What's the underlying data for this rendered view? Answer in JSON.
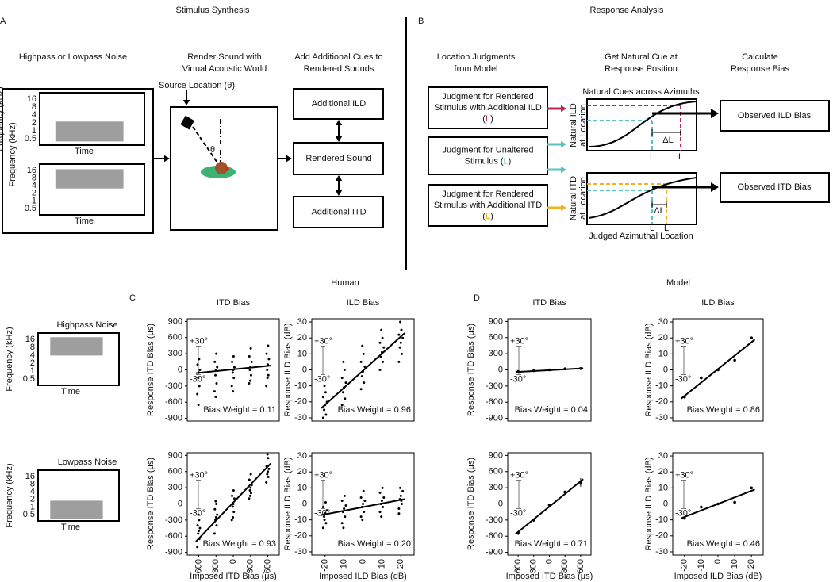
{
  "panel_a": {
    "letter": "A",
    "title": "Stimulus Synthesis",
    "step1": "Highpass or Lowpass Noise",
    "step2": [
      "Render Sound with",
      "Virtual Acoustic World"
    ],
    "step3": [
      "Add Additional Cues to",
      "Rendered Sounds"
    ],
    "freq_label": "Frequency (kHz)",
    "freq_ticks": [
      "16",
      "8",
      "4",
      "2",
      "1",
      "0.5"
    ],
    "time_label": "Time",
    "source_label": "Source Location (θ)",
    "angle_label": "θ",
    "boxes": [
      "Additional ILD",
      "Rendered Sound",
      "Additional ITD"
    ]
  },
  "panel_b": {
    "letter": "B",
    "title": "Response Analysis",
    "step1": [
      "Location Judgments",
      "from Model"
    ],
    "step2": [
      "Get Natural Cue at",
      "Response Position"
    ],
    "step3": [
      "Calculate",
      "Response Bias"
    ],
    "judgments": [
      {
        "lines": [
          "Judgment for Rendered",
          "Stimulus with Additional ILD"
        ],
        "last": "(",
        "marker": "L",
        "close": ")",
        "color": "#b5285a"
      },
      {
        "lines": [
          "Judgment for Unaltered"
        ],
        "last": "Stimulus (",
        "marker": "L",
        "close": ")",
        "color": "#5bc2c0"
      },
      {
        "lines": [
          "Judgment for Rendered",
          "Stimulus with Additional ITD"
        ],
        "last": "(",
        "marker": "L",
        "close": ")",
        "color": "#f0b323"
      }
    ],
    "graph_title": "Natural Cues across Azimuths",
    "ild_axis": [
      "Natural ILD",
      "at Location"
    ],
    "itd_axis": [
      "Natural ITD",
      "at Location"
    ],
    "x_axis": "Judged Azimuthal Location",
    "delta": "ΔL",
    "marker": "L",
    "outputs": [
      "Observed ILD Bias",
      "Observed ITD Bias"
    ]
  },
  "panel_c": {
    "letter": "C",
    "title": "Human",
    "stimuli": [
      "Highpass Noise",
      "Lowpass Noise"
    ]
  },
  "panel_d": {
    "letter": "D",
    "title": "Model"
  },
  "chart_data": [
    {
      "type": "scatter",
      "title": "ITD Bias",
      "ylabel": "Response ITD Bias (μs)",
      "xlim": [
        -800,
        800
      ],
      "ylim": [
        -950,
        950
      ],
      "yticks": [
        900,
        600,
        300,
        0,
        -300,
        -600,
        -900
      ],
      "scale_labels": [
        "+30°",
        "-30°"
      ],
      "annotation": "Bias Weight = 0.11",
      "series": [
        {
          "color": "#000000",
          "x": [
            -625,
            -590,
            -610,
            -600,
            -580,
            -620,
            -595,
            -605,
            -325,
            -290,
            -310,
            -300,
            -280,
            -320,
            -295,
            -305,
            -25,
            10,
            -10,
            0,
            20,
            -20,
            5,
            -5,
            275,
            310,
            290,
            300,
            320,
            280,
            305,
            295,
            575,
            610,
            590,
            600,
            620,
            580,
            605,
            595
          ],
          "y": [
            -450,
            -300,
            -150,
            -50,
            0,
            100,
            200,
            -650,
            -400,
            -250,
            -100,
            0,
            50,
            150,
            300,
            -500,
            -300,
            -150,
            -50,
            0,
            50,
            150,
            250,
            -400,
            -250,
            -100,
            0,
            50,
            150,
            250,
            400,
            -200,
            -300,
            -100,
            0,
            100,
            200,
            300,
            450,
            -150
          ]
        }
      ],
      "fit": {
        "x": [
          -650,
          650
        ],
        "y": [
          -60,
          80
        ]
      }
    },
    {
      "type": "scatter",
      "title": "ILD Bias",
      "ylabel": "Response ILD Bias (dB)",
      "xlim": [
        -27,
        27
      ],
      "ylim": [
        -32,
        32
      ],
      "yticks": [
        30,
        20,
        10,
        0,
        -10,
        -20,
        -30
      ],
      "scale_labels": [
        "+30°",
        "-30°"
      ],
      "annotation": "Bias Weight = 0.96",
      "series": [
        {
          "color": "#000000",
          "x": [
            -21,
            -19.5,
            -20.5,
            -20,
            -19,
            -21,
            -19.7,
            -20.3,
            -11,
            -9.5,
            -10.5,
            -10,
            -9,
            -11,
            -9.7,
            -10.3,
            -1,
            0.5,
            -0.5,
            0,
            1,
            -1,
            0.3,
            -0.3,
            9,
            10.5,
            9.5,
            10,
            11,
            9,
            10.3,
            9.7,
            19,
            20.5,
            19.5,
            20,
            21,
            19,
            20.3,
            19.7
          ],
          "y": [
            -30,
            -28,
            -25,
            -22,
            -20,
            -17,
            -14,
            -10,
            -22,
            -18,
            -14,
            -11,
            -8,
            -5,
            0,
            5,
            -12,
            -8,
            -4,
            -1,
            2,
            5,
            10,
            15,
            0,
            5,
            8,
            11,
            14,
            17,
            20,
            25,
            5,
            10,
            14,
            17,
            20,
            22,
            25,
            30
          ]
        }
      ],
      "fit": {
        "x": [
          -22,
          22
        ],
        "y": [
          -24,
          23
        ]
      }
    },
    {
      "type": "scatter",
      "ylabel": "Response ITD Bias (μs)",
      "xlabel": "Imposed ITD Bias (μs)",
      "xlim": [
        -800,
        800
      ],
      "ylim": [
        -950,
        950
      ],
      "xticks": [
        -600,
        -300,
        0,
        300,
        600
      ],
      "yticks": [
        900,
        600,
        300,
        0,
        -300,
        -600,
        -900
      ],
      "scale_labels": [
        "+30°",
        "-30°"
      ],
      "annotation": "Bias Weight = 0.93",
      "series": [
        {
          "color": "#000000",
          "x": [
            -625,
            -590,
            -610,
            -600,
            -580,
            -620,
            -595,
            -605,
            -325,
            -290,
            -310,
            -300,
            -280,
            -320,
            -295,
            -305,
            -25,
            10,
            -10,
            0,
            20,
            -20,
            5,
            -5,
            275,
            310,
            290,
            300,
            320,
            280,
            305,
            295,
            575,
            610,
            590,
            600,
            620,
            580,
            605,
            595
          ],
          "y": [
            -800,
            -650,
            -550,
            -500,
            -450,
            -400,
            -300,
            -200,
            -550,
            -400,
            -300,
            -250,
            -200,
            -100,
            0,
            50,
            -300,
            -150,
            -50,
            0,
            100,
            150,
            250,
            -250,
            100,
            200,
            250,
            300,
            350,
            450,
            550,
            150,
            400,
            500,
            550,
            600,
            650,
            700,
            850,
            920
          ]
        }
      ],
      "fit": {
        "x": [
          -650,
          650
        ],
        "y": [
          -700,
          750
        ]
      }
    },
    {
      "type": "scatter",
      "ylabel": "Response ILD Bias (dB)",
      "xlabel": "Imposed ILD Bias (dB)",
      "xlim": [
        -27,
        27
      ],
      "ylim": [
        -32,
        32
      ],
      "xticks": [
        -20,
        -10,
        0,
        10,
        20
      ],
      "yticks": [
        30,
        20,
        10,
        0,
        -10,
        -20,
        -30
      ],
      "scale_labels": [
        "+30°",
        "-30°"
      ],
      "annotation": "Bias Weight = 0.20",
      "series": [
        {
          "color": "#000000",
          "x": [
            -21,
            -19.5,
            -20.5,
            -20,
            -19,
            -21,
            -19.7,
            -20.3,
            -11,
            -9.5,
            -10.5,
            -10,
            -9,
            -11,
            -9.7,
            -10.3,
            -1,
            0.5,
            -0.5,
            0,
            1,
            -1,
            0.3,
            -0.3,
            9,
            10.5,
            9.5,
            10,
            11,
            9,
            10.3,
            9.7,
            19,
            20.5,
            19.5,
            20,
            21,
            19,
            20.3,
            19.7
          ],
          "y": [
            -15,
            -12,
            -8,
            -6,
            -4,
            -2,
            1,
            -10,
            -12,
            -8,
            -5,
            -3,
            -1,
            2,
            5,
            -15,
            -8,
            -5,
            -2,
            0,
            2,
            4,
            8,
            -10,
            -5,
            -2,
            0,
            2,
            4,
            7,
            10,
            -8,
            -3,
            0,
            3,
            5,
            8,
            -6,
            2,
            10
          ]
        }
      ],
      "fit": {
        "x": [
          -22,
          22
        ],
        "y": [
          -7,
          3
        ]
      }
    },
    {
      "type": "scatter",
      "title": "ITD Bias",
      "ylabel": "Response ITD Bias (μs)",
      "xlim": [
        -800,
        800
      ],
      "ylim": [
        -950,
        950
      ],
      "yticks": [
        900,
        600,
        300,
        0,
        -300,
        -600,
        -900
      ],
      "scale_labels": [
        "+30°",
        "-30°"
      ],
      "annotation": "Bias Weight = 0.04",
      "series": [
        {
          "color": "#000000",
          "x": [
            -600,
            -300,
            0,
            300,
            600
          ],
          "y": [
            -30,
            -15,
            0,
            20,
            25
          ]
        }
      ],
      "fit": {
        "x": [
          -650,
          650
        ],
        "y": [
          -40,
          30
        ]
      }
    },
    {
      "type": "scatter",
      "title": "ILD Bias",
      "ylabel": "Response ILD Bias (dB)",
      "xlim": [
        -27,
        27
      ],
      "ylim": [
        -32,
        32
      ],
      "yticks": [
        30,
        20,
        10,
        0,
        -10,
        -20,
        -30
      ],
      "scale_labels": [
        "+30°",
        "-30°"
      ],
      "annotation": "Bias Weight = 0.86",
      "series": [
        {
          "color": "#000000",
          "x": [
            -20,
            -10,
            0,
            10,
            20
          ],
          "y": [
            -17,
            -5,
            0,
            6,
            20
          ]
        }
      ],
      "fit": {
        "x": [
          -22,
          22
        ],
        "y": [
          -18,
          19
        ]
      }
    },
    {
      "type": "scatter",
      "ylabel": "Response ITD Bias (μs)",
      "xlabel": "Imposed ITD Bias (μs)",
      "xlim": [
        -800,
        800
      ],
      "ylim": [
        -950,
        950
      ],
      "xticks": [
        -600,
        -300,
        0,
        300,
        600
      ],
      "yticks": [
        900,
        600,
        300,
        0,
        -300,
        -600,
        -900
      ],
      "scale_labels": [
        "+30°",
        "-30°"
      ],
      "annotation": "Bias Weight = 0.71",
      "series": [
        {
          "color": "#000000",
          "x": [
            -600,
            -300,
            0,
            300,
            600
          ],
          "y": [
            -540,
            -300,
            -20,
            220,
            400
          ],
          "errors": [
            40,
            30,
            20,
            30,
            80
          ]
        }
      ],
      "fit": {
        "x": [
          -650,
          650
        ],
        "y": [
          -560,
          460
        ]
      }
    },
    {
      "type": "scatter",
      "ylabel": "Response ILD Bias (dB)",
      "xlabel": "Imposed ILD Bias (dB)",
      "xlim": [
        -27,
        27
      ],
      "ylim": [
        -32,
        32
      ],
      "xticks": [
        -20,
        -10,
        0,
        10,
        20
      ],
      "yticks": [
        30,
        20,
        10,
        0,
        -10,
        -20,
        -30
      ],
      "scale_labels": [
        "+30°",
        "-30°"
      ],
      "annotation": "Bias Weight = 0.46",
      "series": [
        {
          "color": "#000000",
          "x": [
            -20,
            -10,
            0,
            10,
            20
          ],
          "y": [
            -9,
            -2,
            0,
            1,
            10
          ]
        }
      ],
      "fit": {
        "x": [
          -22,
          22
        ],
        "y": [
          -9,
          9
        ]
      }
    }
  ]
}
